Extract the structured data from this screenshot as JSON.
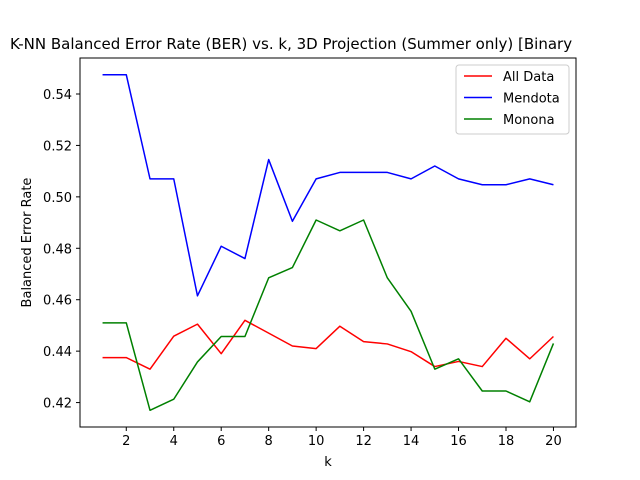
{
  "chart_data": {
    "type": "line",
    "title": "K-NN Balanced Error Rate (BER) vs. k, 3D Projection (Summer only) [Binary",
    "xlabel": "k",
    "ylabel": "Balanced Error Rate",
    "xlim": [
      0.05,
      20.95
    ],
    "ylim": [
      0.4105,
      0.554
    ],
    "xticks": [
      2,
      4,
      6,
      8,
      10,
      12,
      14,
      16,
      18,
      20
    ],
    "yticks": [
      0.42,
      0.44,
      0.46,
      0.48,
      0.5,
      0.52,
      0.54
    ],
    "ytick_labels": [
      "0.42",
      "0.44",
      "0.46",
      "0.48",
      "0.50",
      "0.52",
      "0.54"
    ],
    "grid": false,
    "legend_position": "top-right",
    "x": [
      1,
      2,
      3,
      4,
      5,
      6,
      7,
      8,
      9,
      10,
      11,
      12,
      13,
      14,
      15,
      16,
      17,
      18,
      19,
      20
    ],
    "series": [
      {
        "name": "All Data",
        "color": "#ff0000",
        "values": [
          0.4375,
          0.4375,
          0.433,
          0.4458,
          0.4505,
          0.439,
          0.452,
          0.447,
          0.442,
          0.441,
          0.4497,
          0.4437,
          0.4428,
          0.4398,
          0.434,
          0.436,
          0.434,
          0.445,
          0.437,
          0.4457
        ]
      },
      {
        "name": "Mendota",
        "color": "#0000ff",
        "values": [
          0.5475,
          0.5475,
          0.507,
          0.507,
          0.4615,
          0.4808,
          0.476,
          0.5145,
          0.4905,
          0.507,
          0.5095,
          0.5095,
          0.5095,
          0.507,
          0.512,
          0.507,
          0.5047,
          0.5047,
          0.507,
          0.5047
        ]
      },
      {
        "name": "Monona",
        "color": "#008000",
        "values": [
          0.451,
          0.451,
          0.417,
          0.4213,
          0.4358,
          0.4457,
          0.4457,
          0.4685,
          0.4725,
          0.491,
          0.4868,
          0.491,
          0.4685,
          0.4555,
          0.433,
          0.437,
          0.4245,
          0.4245,
          0.4203,
          0.443
        ]
      }
    ]
  }
}
